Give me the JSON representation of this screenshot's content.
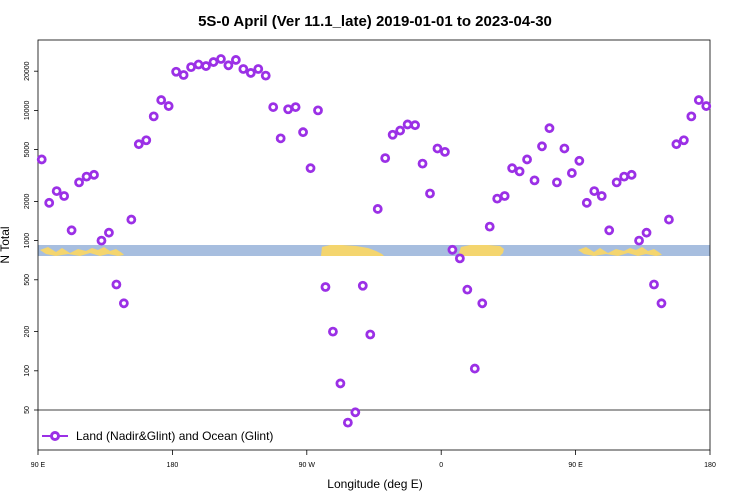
{
  "colors": {
    "marker": "#9b30e6",
    "band": "#a7bedf",
    "land": "#f4d56e"
  },
  "chart_data": {
    "type": "scatter",
    "title": "5S-0 April (Ver 11.1_late)   2019-01-01 to 2023-04-30",
    "xlabel": "Longitude (deg E)",
    "ylabel": "N Total",
    "y_scale": "log",
    "x_ticks": [
      {
        "value": 90,
        "label": "90 E"
      },
      {
        "value": 180,
        "label": "180"
      },
      {
        "value": 270,
        "label": "90 W"
      },
      {
        "value": 360,
        "label": "0"
      },
      {
        "value": 450,
        "label": "90 E"
      },
      {
        "value": 540,
        "label": "180"
      }
    ],
    "xlim": [
      90,
      540
    ],
    "y_ticks": [
      50,
      100,
      200,
      500,
      1000,
      2000,
      5000,
      10000,
      20000
    ],
    "ylim": [
      50,
      40000
    ],
    "grid": false,
    "legend": "bottom-left",
    "series": [
      {
        "name": "Land (Nadir&Glint) and Ocean (Glint)",
        "x": [
          92.5,
          97.5,
          102.5,
          107.5,
          112.5,
          117.5,
          122.5,
          127.5,
          132.5,
          137.5,
          142.5,
          147.5,
          152.5,
          157.5,
          162.5,
          167.5,
          172.5,
          177.5,
          182.5,
          187.5,
          192.5,
          197.5,
          202.5,
          207.5,
          212.5,
          217.5,
          222.5,
          227.5,
          232.5,
          237.5,
          242.5,
          247.5,
          252.5,
          257.5,
          262.5,
          267.5,
          272.5,
          277.5,
          282.5,
          287.5,
          292.5,
          297.5,
          302.5,
          307.5,
          312.5,
          317.5,
          322.5,
          327.5,
          332.5,
          337.5,
          342.5,
          347.5,
          352.5,
          357.5,
          362.5,
          367.5,
          372.5,
          377.5,
          382.5,
          387.5,
          392.5,
          397.5,
          402.5,
          407.5,
          412.5,
          417.5,
          422.5,
          427.5,
          432.5,
          437.5,
          442.5,
          447.5,
          452.5,
          457.5,
          462.5,
          467.5,
          472.5,
          477.5,
          482.5,
          487.5,
          492.5,
          497.5,
          502.5,
          507.5,
          512.5,
          517.5,
          522.5,
          527.5,
          532.5,
          537.5
        ],
        "y": [
          4200,
          1950,
          2400,
          2200,
          1200,
          2800,
          3100,
          3200,
          1000,
          1150,
          460,
          330,
          1450,
          5500,
          5900,
          9000,
          12000,
          10800,
          19800,
          18700,
          21500,
          22500,
          21900,
          23500,
          24800,
          22200,
          24400,
          20800,
          19400,
          20800,
          18500,
          10600,
          6100,
          10200,
          10600,
          6800,
          3600,
          10000,
          440,
          200,
          80,
          40,
          48,
          450,
          190,
          1750,
          4300,
          6500,
          7000,
          7800,
          7700,
          3900,
          2300,
          5100,
          4800,
          850,
          730,
          420,
          104,
          330,
          1280,
          2100,
          2200,
          3600,
          3400,
          4200,
          2900,
          5300,
          7300,
          2800,
          5100,
          3300,
          4100,
          1950,
          2400,
          2200,
          1200,
          2800,
          3100,
          3200,
          1000,
          1150,
          460,
          330,
          1450,
          5500,
          5900,
          9000,
          12000,
          10800
        ]
      }
    ]
  }
}
